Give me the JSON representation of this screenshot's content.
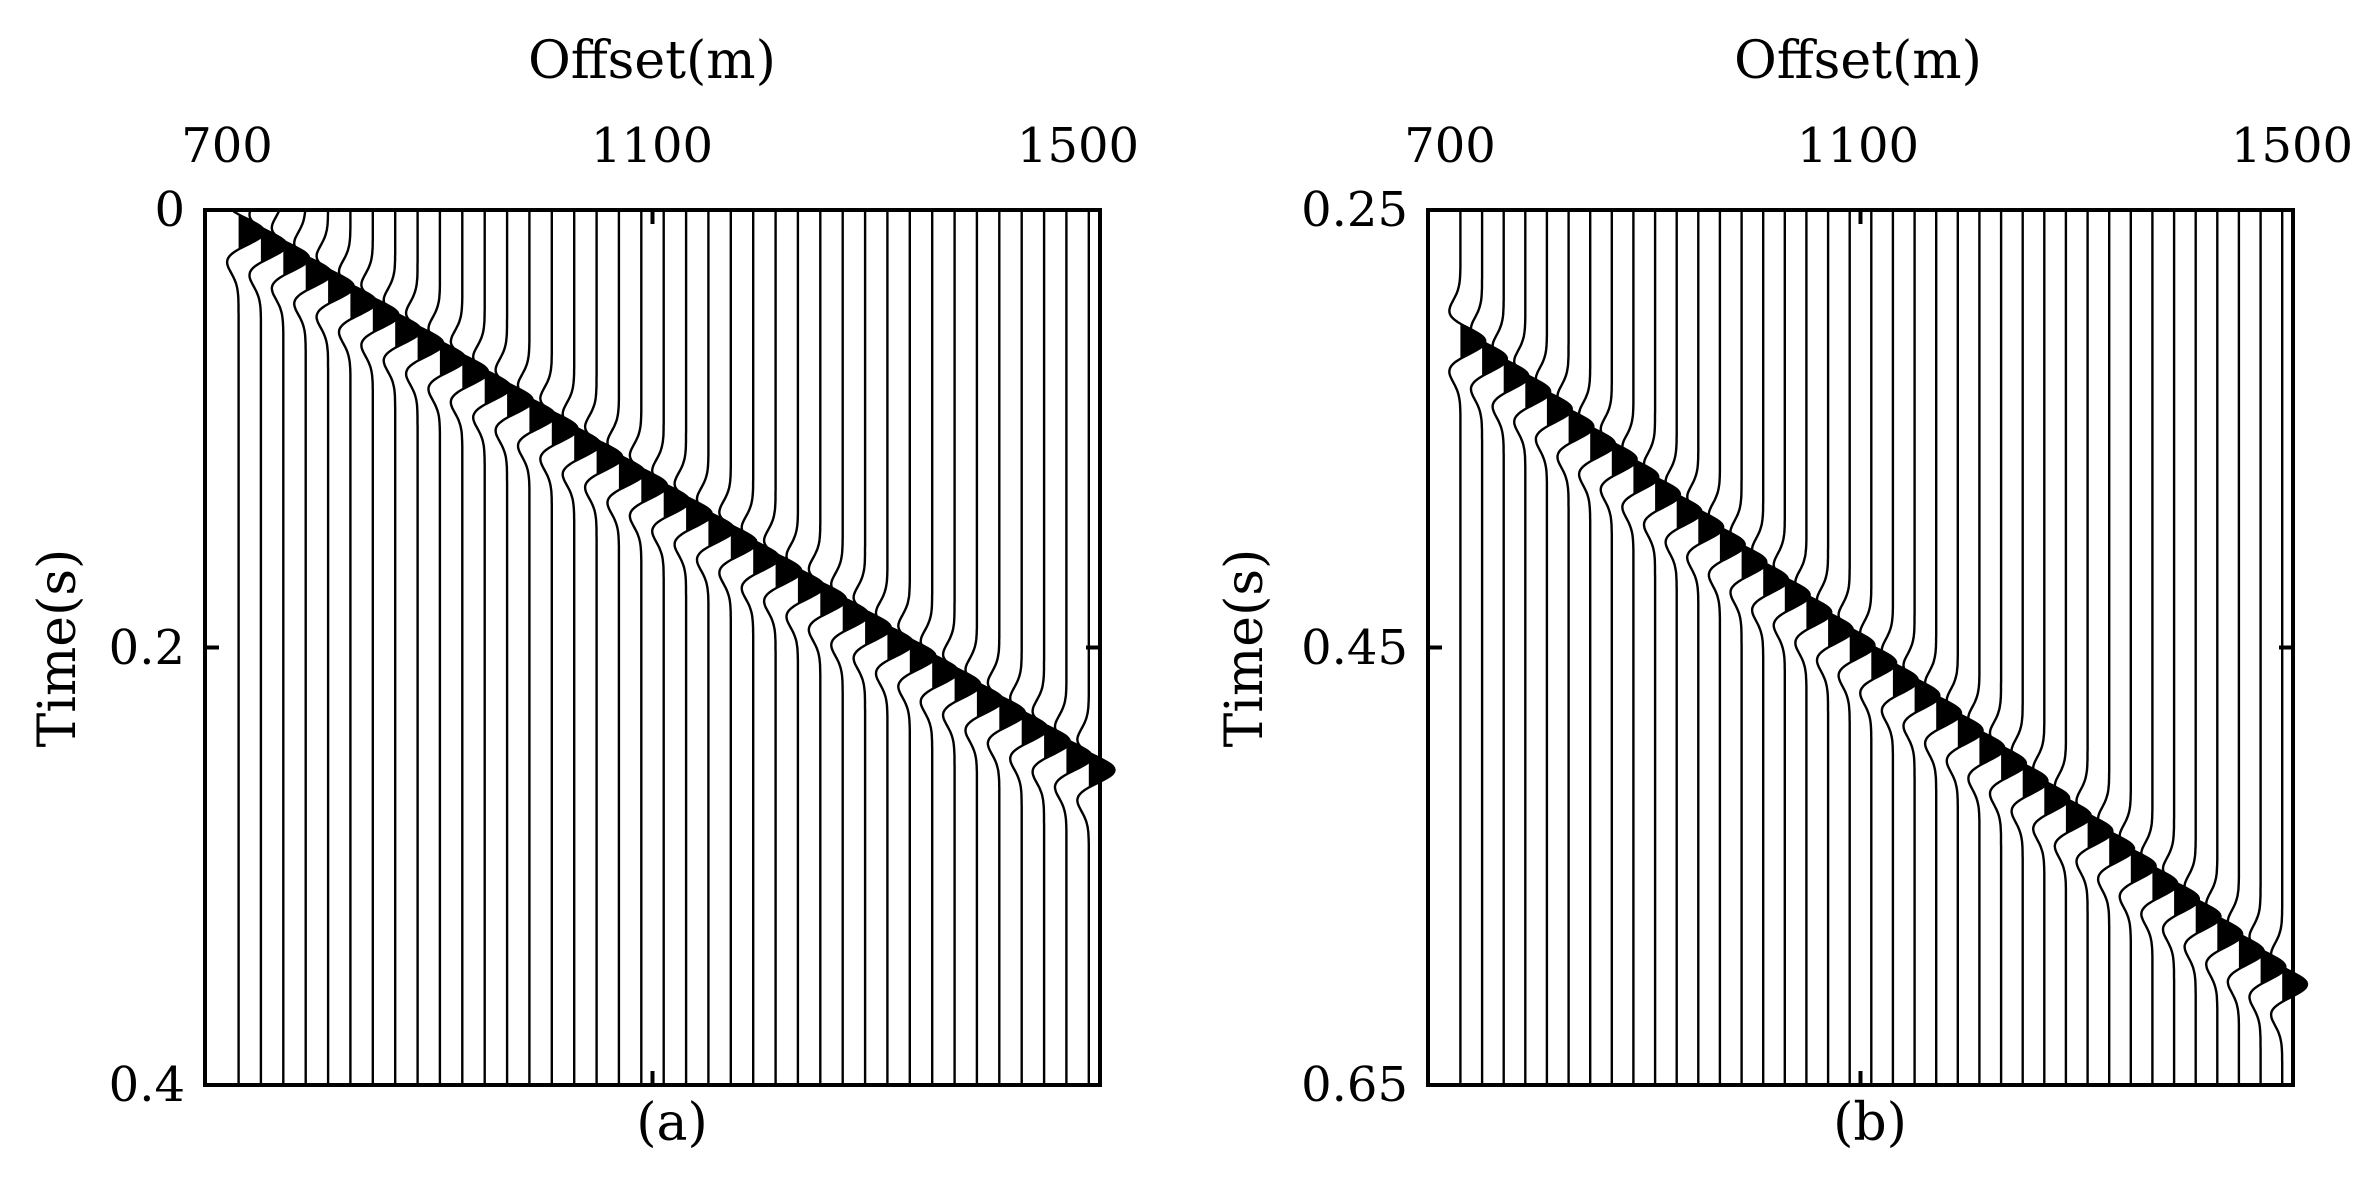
{
  "chart_data": [
    {
      "type": "seismic-wiggle",
      "panel_caption": "(a)",
      "xlabel": "Offset(m)",
      "ylabel": "Time(s)",
      "xlim": [
        700,
        1500
      ],
      "ylim": [
        0,
        0.4
      ],
      "x_ticks": [
        "700",
        "1100",
        "1500"
      ],
      "y_ticks": [
        "0",
        "0.2",
        "0.4"
      ],
      "y_reversed": true,
      "x_axis_position": "top",
      "trace_offsets": [
        730,
        750,
        770,
        790,
        810,
        830,
        850,
        870,
        890,
        910,
        930,
        950,
        970,
        990,
        1010,
        1030,
        1050,
        1070,
        1090,
        1110,
        1130,
        1150,
        1170,
        1190,
        1210,
        1230,
        1250,
        1270,
        1290,
        1310,
        1330,
        1350,
        1370,
        1390,
        1410,
        1430,
        1450,
        1470,
        1490
      ],
      "event_times": [
        0.01,
        0.016,
        0.022,
        0.029,
        0.035,
        0.042,
        0.048,
        0.055,
        0.061,
        0.068,
        0.074,
        0.081,
        0.087,
        0.094,
        0.1,
        0.107,
        0.113,
        0.12,
        0.126,
        0.133,
        0.139,
        0.146,
        0.152,
        0.159,
        0.165,
        0.172,
        0.178,
        0.185,
        0.191,
        0.198,
        0.204,
        0.211,
        0.217,
        0.224,
        0.23,
        0.237,
        0.243,
        0.25,
        0.256
      ],
      "event_color": "#000000"
    },
    {
      "type": "seismic-wiggle",
      "panel_caption": "(b)",
      "xlabel": "Offset(m)",
      "ylabel": "Time(s)",
      "xlim": [
        700,
        1500
      ],
      "ylim": [
        0.25,
        0.65
      ],
      "x_ticks": [
        "700",
        "1100",
        "1500"
      ],
      "y_ticks": [
        "0.25",
        "0.45",
        "0.65"
      ],
      "y_reversed": true,
      "x_axis_position": "top",
      "trace_offsets": [
        730,
        750,
        770,
        790,
        810,
        830,
        850,
        870,
        890,
        910,
        930,
        950,
        970,
        990,
        1010,
        1030,
        1050,
        1070,
        1090,
        1110,
        1130,
        1150,
        1170,
        1190,
        1210,
        1230,
        1250,
        1270,
        1290,
        1310,
        1330,
        1350,
        1370,
        1390,
        1410,
        1430,
        1450,
        1470,
        1490
      ],
      "event_times": [
        0.31,
        0.318,
        0.326,
        0.333,
        0.341,
        0.349,
        0.357,
        0.364,
        0.372,
        0.38,
        0.388,
        0.395,
        0.403,
        0.411,
        0.419,
        0.426,
        0.434,
        0.442,
        0.449,
        0.457,
        0.465,
        0.472,
        0.48,
        0.488,
        0.496,
        0.503,
        0.511,
        0.519,
        0.527,
        0.534,
        0.542,
        0.55,
        0.558,
        0.565,
        0.573,
        0.581,
        0.589,
        0.596,
        0.604
      ],
      "event_color": "#000000"
    }
  ]
}
